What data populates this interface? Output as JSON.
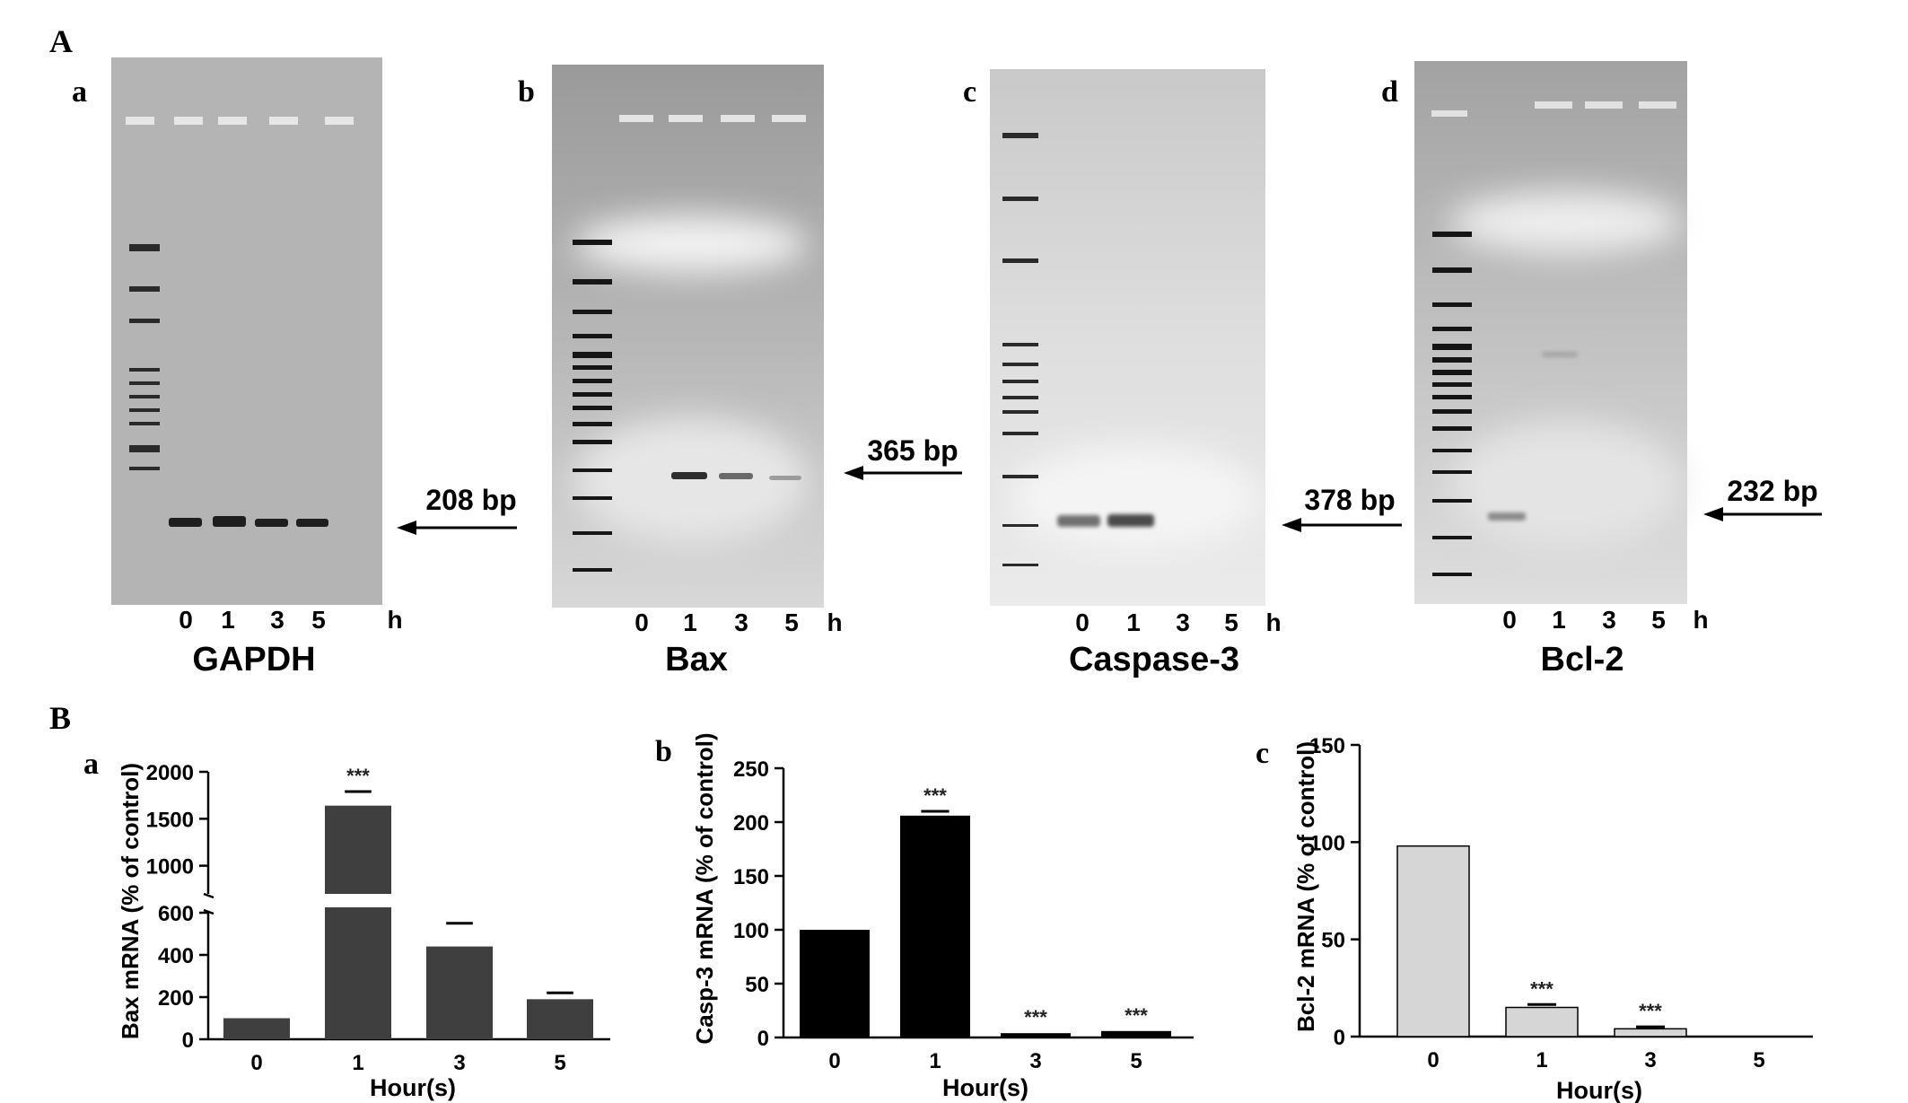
{
  "section_a": {
    "label": "A",
    "unit": "h",
    "panels": [
      {
        "id": "a",
        "gene": "GAPDH",
        "marker": "208 bp",
        "lanes": [
          "0",
          "1",
          "3",
          "5"
        ]
      },
      {
        "id": "b",
        "gene": "Bax",
        "marker": "365 bp",
        "lanes": [
          "0",
          "1",
          "3",
          "5"
        ]
      },
      {
        "id": "c",
        "gene": "Caspase-3",
        "marker": "378 bp",
        "lanes": [
          "0",
          "1",
          "3",
          "5"
        ]
      },
      {
        "id": "d",
        "gene": "Bcl-2",
        "marker": "232 bp",
        "lanes": [
          "0",
          "1",
          "3",
          "5"
        ]
      }
    ]
  },
  "section_b": {
    "label": "B"
  },
  "chart_data": [
    {
      "type": "bar",
      "panel": "a",
      "categories": [
        "0",
        "1",
        "3",
        "5"
      ],
      "values": [
        100,
        1640,
        440,
        190
      ],
      "errors": [
        0,
        150,
        110,
        30
      ],
      "significance": [
        "",
        "***",
        "",
        ""
      ],
      "xlabel": "Hour(s)",
      "ylabel": "Bax mRNA (% of control)",
      "y_ticks_lower": [
        "0",
        "200",
        "400",
        "600"
      ],
      "y_ticks_upper": [
        "1000",
        "1500",
        "2000"
      ],
      "broken_axis": {
        "lower": [
          0,
          600
        ],
        "upper": [
          700,
          2000
        ]
      },
      "color": "#3f3f3f"
    },
    {
      "type": "bar",
      "panel": "b",
      "categories": [
        "0",
        "1",
        "3",
        "5"
      ],
      "values": [
        100,
        206,
        4,
        6
      ],
      "errors": [
        0,
        4,
        0,
        0
      ],
      "significance": [
        "",
        "***",
        "***",
        "***"
      ],
      "xlabel": "Hour(s)",
      "ylabel": "Casp-3 mRNA (% of control)",
      "y_ticks": [
        "0",
        "50",
        "100",
        "150",
        "200",
        "250"
      ],
      "ylim": [
        0,
        250
      ],
      "color": "#000000"
    },
    {
      "type": "bar",
      "panel": "c",
      "categories": [
        "0",
        "1",
        "3",
        "5"
      ],
      "values": [
        98,
        15,
        4,
        0
      ],
      "errors": [
        0,
        1.5,
        1,
        0
      ],
      "significance": [
        "",
        "***",
        "***",
        ""
      ],
      "xlabel": "Hour(s)",
      "ylabel": "Bcl-2 mRNA (% of control)",
      "y_ticks": [
        "0",
        "50",
        "100",
        "150"
      ],
      "ylim": [
        0,
        150
      ],
      "color": "#d6d6d6"
    }
  ]
}
